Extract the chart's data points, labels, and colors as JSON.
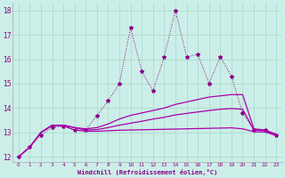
{
  "xlabel": "Windchill (Refroidissement éolien,°C)",
  "bg_color": "#cceee8",
  "grid_color": "#aaddcc",
  "line_color_dot": "#880088",
  "line_color_solid": "#aa00aa",
  "xlim": [
    -0.5,
    23.5
  ],
  "ylim": [
    11.8,
    18.3
  ],
  "xticks": [
    0,
    1,
    2,
    3,
    4,
    5,
    6,
    7,
    8,
    9,
    10,
    11,
    12,
    13,
    14,
    15,
    16,
    17,
    18,
    19,
    20,
    21,
    22,
    23
  ],
  "yticks": [
    12,
    13,
    14,
    15,
    16,
    17,
    18
  ],
  "dot_x": [
    0,
    1,
    2,
    3,
    4,
    5,
    6,
    7,
    8,
    9,
    10,
    11,
    12,
    13,
    14,
    15,
    16,
    17,
    18,
    19,
    20,
    21,
    22,
    23
  ],
  "dot_y": [
    12.0,
    12.4,
    12.9,
    13.2,
    13.25,
    13.1,
    13.1,
    13.7,
    14.3,
    15.0,
    17.3,
    15.5,
    14.7,
    16.1,
    18.0,
    16.1,
    16.2,
    15.0,
    16.1,
    15.3,
    13.8,
    13.1,
    13.1,
    12.9
  ],
  "upper_x": [
    0,
    1,
    2,
    3,
    4,
    5,
    6,
    7,
    8,
    9,
    10,
    11,
    12,
    13,
    14,
    15,
    16,
    17,
    18,
    19,
    20,
    21,
    22,
    23
  ],
  "upper_y": [
    12.0,
    12.4,
    13.0,
    13.3,
    13.3,
    13.2,
    13.15,
    13.2,
    13.35,
    13.55,
    13.7,
    13.8,
    13.9,
    14.0,
    14.15,
    14.25,
    14.35,
    14.45,
    14.5,
    14.55,
    14.55,
    13.15,
    13.1,
    12.93
  ],
  "mid_x": [
    0,
    1,
    2,
    3,
    4,
    5,
    6,
    7,
    8,
    9,
    10,
    11,
    12,
    13,
    14,
    15,
    16,
    17,
    18,
    19,
    20,
    21,
    22,
    23
  ],
  "mid_y": [
    12.0,
    12.4,
    13.0,
    13.3,
    13.3,
    13.2,
    13.1,
    13.12,
    13.2,
    13.3,
    13.38,
    13.46,
    13.55,
    13.62,
    13.72,
    13.78,
    13.84,
    13.9,
    13.95,
    13.98,
    13.95,
    13.1,
    13.07,
    12.9
  ],
  "low_x": [
    0,
    1,
    2,
    3,
    4,
    5,
    6,
    7,
    8,
    9,
    10,
    11,
    12,
    13,
    14,
    15,
    16,
    17,
    18,
    19,
    20,
    21,
    22,
    23
  ],
  "low_y": [
    12.0,
    12.4,
    13.0,
    13.28,
    13.28,
    13.1,
    13.05,
    13.05,
    13.07,
    13.09,
    13.1,
    13.11,
    13.12,
    13.13,
    13.14,
    13.15,
    13.16,
    13.17,
    13.18,
    13.19,
    13.15,
    13.03,
    13.02,
    12.87
  ]
}
